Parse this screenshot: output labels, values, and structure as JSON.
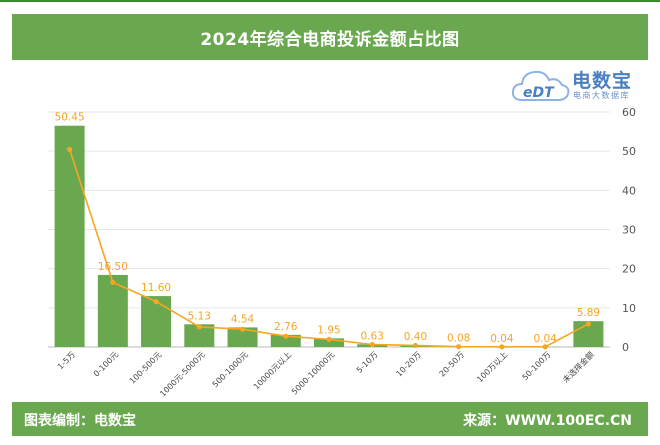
{
  "header": {
    "title": "2024年综合电商投诉金额占比图"
  },
  "logo": {
    "brand_mark": "eDT",
    "brand_name": "电数宝",
    "tagline": "电商大数据库"
  },
  "footer": {
    "left_text": "图表编制：电数宝",
    "right_text": "来源：WWW.100EC.CN"
  },
  "colors": {
    "header": "#6aa84f",
    "bar": "#6aa84f",
    "line": "#f5a623",
    "label": "#f5a623"
  },
  "chart_data": {
    "type": "bar",
    "title": "2024年综合电商投诉金额占比图",
    "categories": [
      "1-5万",
      "0-100元",
      "100-500元",
      "1000元-5000元",
      "500-1000元",
      "10000元以上",
      "5000-10000元",
      "5-10万",
      "10-20万",
      "20-50万",
      "100万以上",
      "50-100万",
      "未选择金额"
    ],
    "values": [
      56.5,
      18.4,
      13.0,
      5.8,
      5.0,
      3.1,
      2.2,
      0.7,
      0.45,
      0.1,
      0.05,
      0.05,
      6.6
    ],
    "line_values": [
      50.45,
      16.5,
      11.6,
      5.13,
      4.54,
      2.76,
      1.95,
      0.63,
      0.4,
      0.08,
      0.04,
      0.04,
      5.89
    ],
    "labels": [
      "50.45",
      "16.50",
      "11.60",
      "5.13",
      "4.54",
      "2.76",
      "1.95",
      "0.63",
      "0.40",
      "0.08",
      "0.04",
      "0.04",
      "5.89"
    ],
    "ylim": [
      0,
      60
    ],
    "yticks": [
      0,
      10,
      20,
      30,
      40,
      50,
      60
    ],
    "ylabel_position": "right",
    "grid": true,
    "legend": "none"
  }
}
